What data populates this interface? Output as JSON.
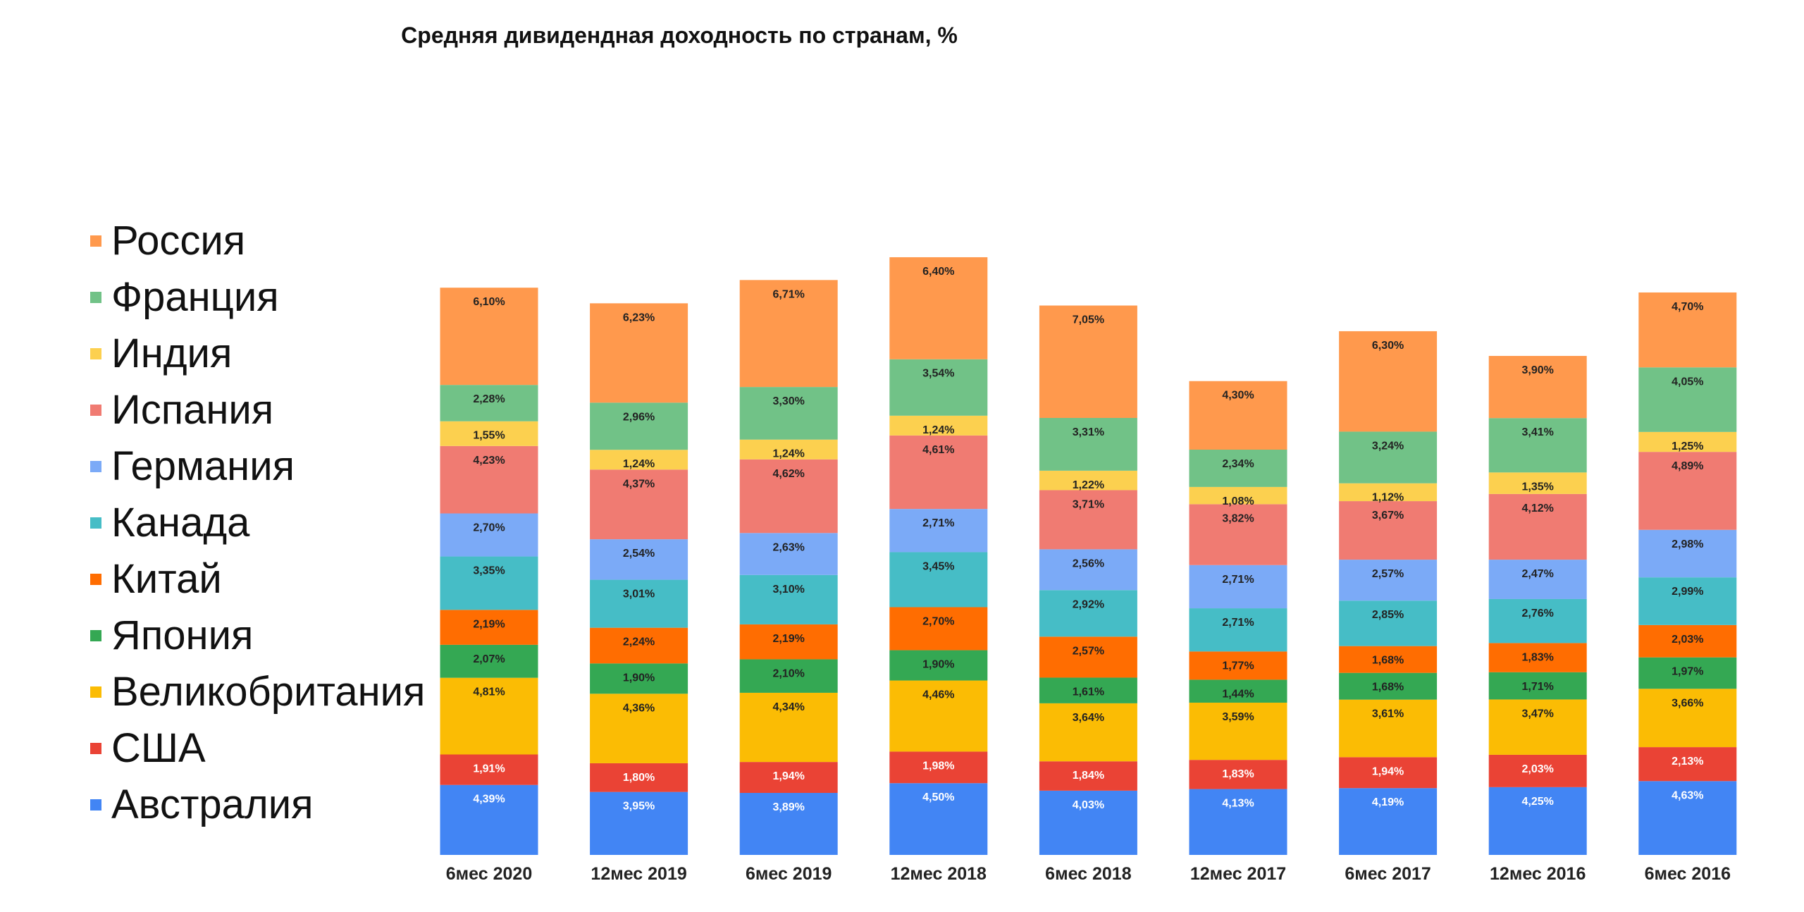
{
  "chart_data": {
    "type": "bar",
    "stacked": true,
    "title": "Средняя дивидендная доходность по странам, %",
    "xlabel": "",
    "ylabel": "",
    "legend_position": "left",
    "grid": false,
    "categories": [
      "6мес 2020",
      "12мес 2019",
      "6мес 2019",
      "12мес 2018",
      "6мес 2018",
      "12мес 2017",
      "6мес 2017",
      "12мес 2016",
      "6мес 2016"
    ],
    "series": [
      {
        "name": "Австралия",
        "color": "#4285f4",
        "values": [
          4.39,
          3.95,
          3.89,
          4.5,
          4.03,
          4.13,
          4.19,
          4.25,
          4.63
        ],
        "labels": [
          "4,39%",
          "3,95%",
          "3,89%",
          "4,50%",
          "4,03%",
          "4,13%",
          "4,19%",
          "4,25%",
          "4,63%"
        ]
      },
      {
        "name": "США",
        "color": "#ea4335",
        "values": [
          1.91,
          1.8,
          1.94,
          1.98,
          1.84,
          1.83,
          1.94,
          2.03,
          2.13
        ],
        "labels": [
          "1,91%",
          "1,80%",
          "1,94%",
          "1,98%",
          "1,84%",
          "1,83%",
          "1,94%",
          "2,03%",
          "2,13%"
        ]
      },
      {
        "name": "Великобритания",
        "color": "#fbbc04",
        "values": [
          4.81,
          4.36,
          4.34,
          4.46,
          3.64,
          3.59,
          3.61,
          3.47,
          3.66
        ],
        "labels": [
          "4,81%",
          "4,36%",
          "4,34%",
          "4,46%",
          "3,64%",
          "3,59%",
          "3,61%",
          "3,47%",
          "3,66%"
        ]
      },
      {
        "name": "Япония",
        "color": "#34a853",
        "values": [
          2.07,
          1.9,
          2.1,
          1.9,
          1.61,
          1.44,
          1.68,
          1.71,
          1.97
        ],
        "labels": [
          "2,07%",
          "1,90%",
          "2,10%",
          "1,90%",
          "1,61%",
          "1,44%",
          "1,68%",
          "1,71%",
          "1,97%"
        ]
      },
      {
        "name": "Китай",
        "color": "#ff6d01",
        "values": [
          2.19,
          2.24,
          2.19,
          2.7,
          2.57,
          1.77,
          1.68,
          1.83,
          2.03
        ],
        "labels": [
          "2,19%",
          "2,24%",
          "2,19%",
          "2,70%",
          "2,57%",
          "1,77%",
          "1,68%",
          "1,83%",
          "2,03%"
        ]
      },
      {
        "name": "Канада",
        "color": "#46bdc6",
        "values": [
          3.35,
          3.01,
          3.1,
          3.45,
          2.92,
          2.71,
          2.85,
          2.76,
          2.99
        ],
        "labels": [
          "3,35%",
          "3,01%",
          "3,10%",
          "3,45%",
          "2,92%",
          "2,71%",
          "2,85%",
          "2,76%",
          "2,99%"
        ]
      },
      {
        "name": "Германия",
        "color": "#7baaf7",
        "values": [
          2.7,
          2.54,
          2.63,
          2.71,
          2.56,
          2.71,
          2.57,
          2.47,
          2.98
        ],
        "labels": [
          "2,70%",
          "2,54%",
          "2,63%",
          "2,71%",
          "2,56%",
          "2,71%",
          "2,57%",
          "2,47%",
          "2,98%"
        ]
      },
      {
        "name": "Испания",
        "color": "#f07b72",
        "values": [
          4.23,
          4.37,
          4.62,
          4.61,
          3.71,
          3.82,
          3.67,
          4.12,
          4.89
        ],
        "labels": [
          "4,23%",
          "4,37%",
          "4,62%",
          "4,61%",
          "3,71%",
          "3,82%",
          "3,67%",
          "4,12%",
          "4,89%"
        ]
      },
      {
        "name": "Индия",
        "color": "#fcd04f",
        "values": [
          1.55,
          1.24,
          1.24,
          1.24,
          1.22,
          1.08,
          1.12,
          1.35,
          1.25
        ],
        "labels": [
          "1,55%",
          "1,24%",
          "1,24%",
          "1,24%",
          "1,22%",
          "1,08%",
          "1,12%",
          "1,35%",
          "1,25%"
        ]
      },
      {
        "name": "Франция",
        "color": "#71c287",
        "values": [
          2.28,
          2.96,
          3.3,
          3.54,
          3.31,
          2.34,
          3.24,
          3.41,
          4.05
        ],
        "labels": [
          "2,28%",
          "2,96%",
          "3,30%",
          "3,54%",
          "3,31%",
          "2,34%",
          "3,24%",
          "3,41%",
          "4,05%"
        ]
      },
      {
        "name": "Россия",
        "color": "#ff994d",
        "values": [
          6.1,
          6.23,
          6.71,
          6.4,
          7.05,
          4.3,
          6.3,
          3.9,
          4.7
        ],
        "labels": [
          "6,10%",
          "6,23%",
          "6,71%",
          "6,40%",
          "7,05%",
          "4,30%",
          "6,30%",
          "3,90%",
          "4,70%"
        ]
      }
    ]
  }
}
